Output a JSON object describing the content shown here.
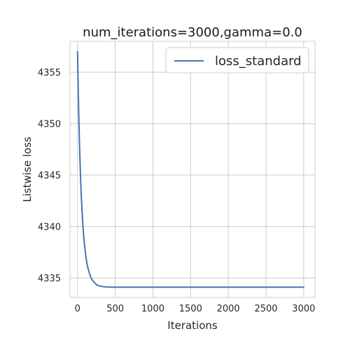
{
  "chart_data": {
    "type": "line",
    "title": "num_iterations=3000,gamma=0.0",
    "xlabel": "Iterations",
    "ylabel": "Listwise loss",
    "xlim": [
      -100,
      3150
    ],
    "ylim": [
      4333.1,
      4358.0
    ],
    "xticks": [
      0,
      500,
      1000,
      1500,
      2000,
      2500,
      3000
    ],
    "yticks": [
      4335,
      4340,
      4345,
      4350,
      4355
    ],
    "grid": true,
    "legend_position": "top-right",
    "series": [
      {
        "name": "loss_standard",
        "color": "#4c72b0",
        "x": [
          0,
          10,
          20,
          30,
          40,
          50,
          60,
          70,
          80,
          90,
          100,
          120,
          140,
          160,
          180,
          200,
          230,
          260,
          300,
          350,
          400,
          500,
          600,
          800,
          1000,
          1500,
          2000,
          2500,
          3000
        ],
        "y": [
          4357.0,
          4353.0,
          4349.7,
          4347.0,
          4344.8,
          4343.0,
          4341.5,
          4340.2,
          4339.2,
          4338.4,
          4337.7,
          4336.6,
          4335.9,
          4335.4,
          4335.0,
          4334.75,
          4334.5,
          4334.3,
          4334.2,
          4334.15,
          4334.12,
          4334.1,
          4334.1,
          4334.1,
          4334.1,
          4334.1,
          4334.1,
          4334.1,
          4334.1
        ]
      }
    ]
  }
}
